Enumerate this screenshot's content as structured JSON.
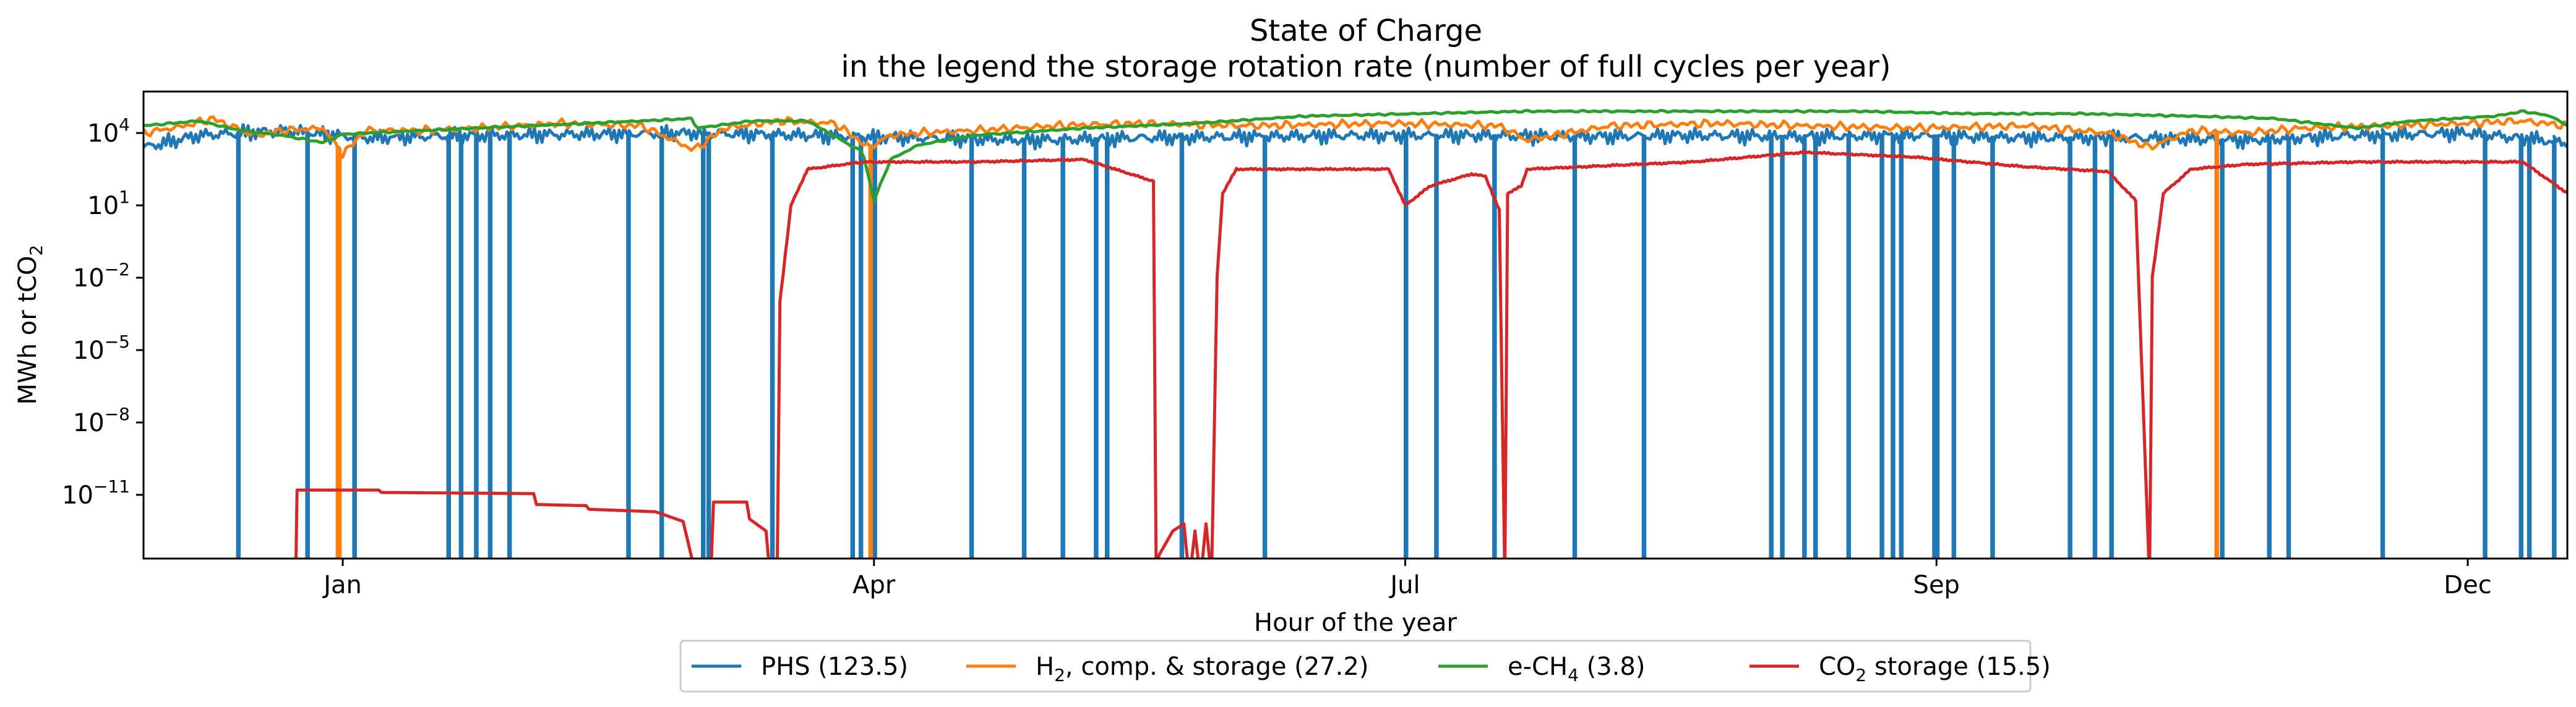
{
  "chart_data": {
    "type": "line",
    "title": "State of Charge",
    "subtitle": "in the legend the storage rotation rate (number of full cycles per year)",
    "xlabel": "Hour of the year",
    "ylabel_main": "MWh or tCO",
    "ylabel_sub": "2",
    "yscale": "log",
    "xlim": [
      0,
      8760
    ],
    "ylim_exponent": [
      -14,
      5.2
    ],
    "x_ticks": [
      {
        "label": "Jan",
        "value": 720
      },
      {
        "label": "Apr",
        "value": 2640
      },
      {
        "label": "Jul",
        "value": 4560
      },
      {
        "label": "Sep",
        "value": 6480
      },
      {
        "label": "Dec",
        "value": 8400
      }
    ],
    "y_ticks": [
      {
        "base": "10",
        "exp": "4",
        "value": 4
      },
      {
        "base": "10",
        "exp": "1",
        "value": 1
      },
      {
        "base": "10",
        "exp": "−2",
        "value": -2
      },
      {
        "base": "10",
        "exp": "−5",
        "value": -5
      },
      {
        "base": "10",
        "exp": "−8",
        "value": -8
      },
      {
        "base": "10",
        "exp": "−11",
        "value": -11
      }
    ],
    "grid": false,
    "legend_position": "bottom-center",
    "series": [
      {
        "key": "phs",
        "name_main": "PHS (123.5)",
        "name_sub": "",
        "name_tail": "",
        "color": "#1f77b4",
        "baseline_points": [
          [
            0,
            3.4
          ],
          [
            200,
            3.9
          ],
          [
            500,
            4.1
          ],
          [
            800,
            3.8
          ],
          [
            1200,
            3.9
          ],
          [
            1600,
            3.95
          ],
          [
            2000,
            4.0
          ],
          [
            2400,
            3.9
          ],
          [
            2800,
            3.8
          ],
          [
            3200,
            3.7
          ],
          [
            3600,
            3.8
          ],
          [
            4000,
            3.85
          ],
          [
            4400,
            3.9
          ],
          [
            4800,
            3.9
          ],
          [
            5200,
            3.85
          ],
          [
            5600,
            3.9
          ],
          [
            6000,
            3.85
          ],
          [
            6400,
            3.9
          ],
          [
            6800,
            3.8
          ],
          [
            7200,
            3.8
          ],
          [
            7600,
            3.7
          ],
          [
            8000,
            3.9
          ],
          [
            8400,
            4.0
          ],
          [
            8760,
            3.6
          ]
        ],
        "dips_to_bottom": [
          340,
          590,
          590,
          760,
          1100,
          1145,
          1200,
          1250,
          1320,
          1750,
          1870,
          2020,
          2040,
          2270,
          2560,
          2590,
          2640,
          2990,
          3180,
          3320,
          3440,
          3480,
          3750,
          4050,
          4560,
          4670,
          4880,
          5170,
          5420,
          5880,
          5920,
          6000,
          6040,
          6160,
          6280,
          6320,
          6350,
          6470,
          6480,
          6540,
          6680,
          6960,
          7050,
          7110,
          7510,
          7680,
          7750,
          8090,
          8460,
          8590,
          8620,
          8710
        ],
        "dip_value": -14.5
      },
      {
        "key": "h2",
        "name_main": "H",
        "name_sub": "2",
        "name_tail": ", comp. & storage (27.2)",
        "color": "#ff7f0e",
        "baseline_points": [
          [
            0,
            4.0
          ],
          [
            150,
            4.3
          ],
          [
            250,
            4.6
          ],
          [
            400,
            3.9
          ],
          [
            500,
            4.1
          ],
          [
            650,
            4.2
          ],
          [
            720,
            3.1
          ],
          [
            800,
            4.1
          ],
          [
            1000,
            4.1
          ],
          [
            1200,
            4.2
          ],
          [
            1500,
            4.4
          ],
          [
            1800,
            4.3
          ],
          [
            1990,
            3.3
          ],
          [
            2100,
            4.2
          ],
          [
            2300,
            4.5
          ],
          [
            2500,
            4.4
          ],
          [
            2620,
            3.4
          ],
          [
            2700,
            3.9
          ],
          [
            2800,
            4.0
          ],
          [
            3000,
            4.1
          ],
          [
            3300,
            4.3
          ],
          [
            3600,
            4.4
          ],
          [
            4000,
            4.3
          ],
          [
            4500,
            4.4
          ],
          [
            4900,
            4.3
          ],
          [
            5000,
            3.7
          ],
          [
            5300,
            4.3
          ],
          [
            5700,
            4.4
          ],
          [
            6000,
            4.3
          ],
          [
            6400,
            4.2
          ],
          [
            6800,
            4.3
          ],
          [
            7100,
            4.0
          ],
          [
            7250,
            3.4
          ],
          [
            7400,
            4.1
          ],
          [
            7600,
            4.0
          ],
          [
            7800,
            4.2
          ],
          [
            8100,
            4.3
          ],
          [
            8400,
            4.4
          ],
          [
            8600,
            4.5
          ],
          [
            8760,
            4.3
          ]
        ],
        "dips_to_bottom": [
          700,
          705,
          2625,
          7490
        ],
        "dip_value": -14.5
      },
      {
        "key": "ech4",
        "name_main": "e-CH",
        "name_sub": "4",
        "name_tail": " (3.8)",
        "color": "#2ca02c",
        "baseline_points": [
          [
            0,
            4.3
          ],
          [
            200,
            4.5
          ],
          [
            350,
            4.1
          ],
          [
            500,
            3.9
          ],
          [
            650,
            3.6
          ],
          [
            720,
            3.95
          ],
          [
            1000,
            4.1
          ],
          [
            1400,
            4.3
          ],
          [
            1800,
            4.5
          ],
          [
            1980,
            4.6
          ],
          [
            2000,
            4.2
          ],
          [
            2200,
            4.5
          ],
          [
            2400,
            4.5
          ],
          [
            2600,
            3.2
          ],
          [
            2640,
            1.2
          ],
          [
            2700,
            2.9
          ],
          [
            2800,
            3.5
          ],
          [
            3000,
            3.9
          ],
          [
            3400,
            4.2
          ],
          [
            3800,
            4.4
          ],
          [
            4200,
            4.7
          ],
          [
            4600,
            4.8
          ],
          [
            5000,
            4.9
          ],
          [
            5400,
            4.9
          ],
          [
            5800,
            4.9
          ],
          [
            6200,
            4.9
          ],
          [
            6600,
            4.8
          ],
          [
            7000,
            4.8
          ],
          [
            7400,
            4.7
          ],
          [
            7700,
            4.6
          ],
          [
            8000,
            4.2
          ],
          [
            8200,
            4.5
          ],
          [
            8500,
            4.7
          ],
          [
            8600,
            4.9
          ],
          [
            8700,
            4.7
          ],
          [
            8760,
            4.3
          ]
        ],
        "dips_to_bottom": [],
        "dip_value": -14.5
      },
      {
        "key": "co2",
        "name_main": "CO",
        "name_sub": "2",
        "name_tail": " storage (15.5)",
        "color": "#d62728",
        "baseline_points": [
          [
            550,
            -14.5
          ],
          [
            555,
            -10.8
          ],
          [
            850,
            -10.8
          ],
          [
            860,
            -10.9
          ],
          [
            1410,
            -10.95
          ],
          [
            1420,
            -11.4
          ],
          [
            1600,
            -11.45
          ],
          [
            1610,
            -11.6
          ],
          [
            1850,
            -11.7
          ],
          [
            1950,
            -12.1
          ],
          [
            2000,
            -14.5
          ],
          [
            2050,
            -14.5
          ],
          [
            2060,
            -11.3
          ],
          [
            2180,
            -11.3
          ],
          [
            2190,
            -12.0
          ],
          [
            2250,
            -12.5
          ],
          [
            2265,
            -14.5
          ],
          [
            2290,
            -14.5
          ],
          [
            2300,
            -3.0
          ],
          [
            2320,
            -1.0
          ],
          [
            2340,
            1.0
          ],
          [
            2400,
            2.5
          ],
          [
            2600,
            2.8
          ],
          [
            3000,
            2.8
          ],
          [
            3400,
            2.9
          ],
          [
            3650,
            2.0
          ],
          [
            3660,
            -14.5
          ],
          [
            3670,
            -13.5
          ],
          [
            3720,
            -12.5
          ],
          [
            3760,
            -12.2
          ],
          [
            3780,
            -14.5
          ],
          [
            3800,
            -12.5
          ],
          [
            3820,
            -14.5
          ],
          [
            3840,
            -12.2
          ],
          [
            3860,
            -14.5
          ],
          [
            3880,
            -2.0
          ],
          [
            3900,
            1.5
          ],
          [
            3950,
            2.5
          ],
          [
            4200,
            2.5
          ],
          [
            4500,
            2.5
          ],
          [
            4560,
            1.0
          ],
          [
            4650,
            1.8
          ],
          [
            4800,
            2.3
          ],
          [
            4850,
            2.2
          ],
          [
            4900,
            0.8
          ],
          [
            4920,
            -14.5
          ],
          [
            4930,
            1.5
          ],
          [
            4980,
            1.8
          ],
          [
            5000,
            2.5
          ],
          [
            5600,
            2.8
          ],
          [
            6000,
            3.2
          ],
          [
            6400,
            3.0
          ],
          [
            6800,
            2.6
          ],
          [
            7100,
            2.4
          ],
          [
            7200,
            1.2
          ],
          [
            7250,
            -14.5
          ],
          [
            7260,
            -2.0
          ],
          [
            7300,
            1.5
          ],
          [
            7400,
            2.5
          ],
          [
            7600,
            2.7
          ],
          [
            8000,
            2.8
          ],
          [
            8600,
            2.8
          ],
          [
            8760,
            1.5
          ]
        ],
        "dips_to_bottom": [],
        "dip_value": -14.5
      }
    ]
  }
}
